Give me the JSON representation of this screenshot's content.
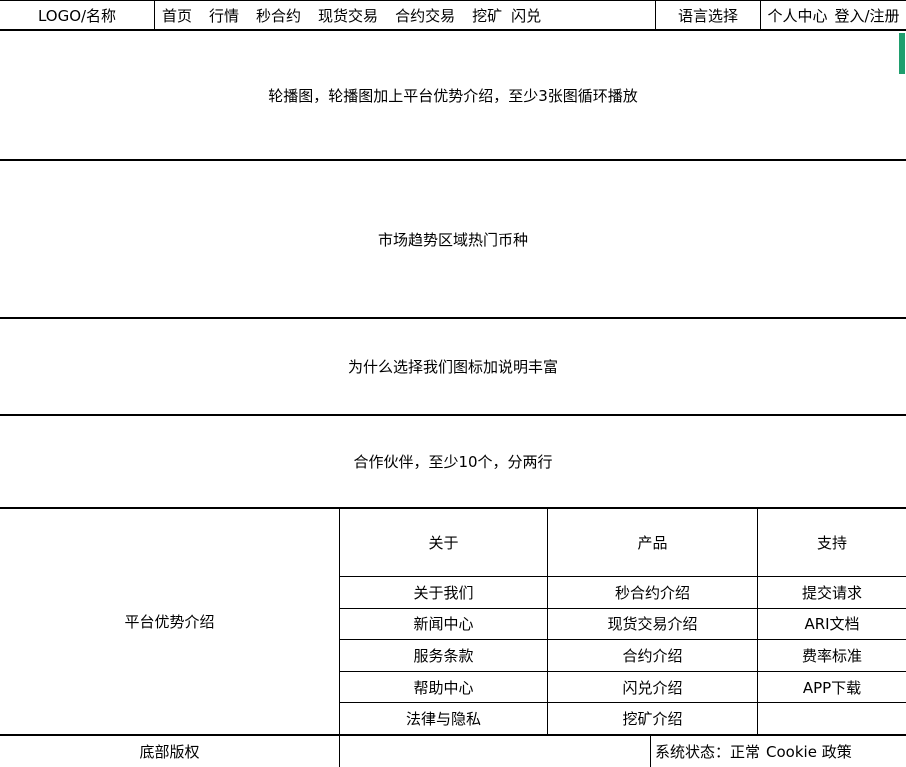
{
  "header": {
    "logo": "LOGO/名称",
    "nav_items": [
      "首页",
      "行情",
      "秒合约",
      "现货交易",
      "合约交易",
      "挖矿",
      "闪兑"
    ],
    "language": "语言选择",
    "user_center": "个人中心",
    "auth": "登入/注册"
  },
  "sections": {
    "carousel": "轮播图，轮播图加上平台优势介绍，至少3张图循环播放",
    "market": "市场趋势区域热门币种",
    "why_us": "为什么选择我们图标加说明丰富",
    "partners": "合作伙伴，至少10个，分两行"
  },
  "footer": {
    "platform": "平台优势介绍",
    "columns": [
      {
        "title": "关于",
        "items": [
          "关于我们",
          "新闻中心",
          "服务条款",
          "帮助中心",
          "法律与隐私"
        ]
      },
      {
        "title": "产品",
        "items": [
          "秒合约介绍",
          "现货交易介绍",
          "合约介绍",
          "闪兑介绍",
          "挖矿介绍"
        ]
      },
      {
        "title": "支持",
        "items": [
          "提交请求",
          "ARI文档",
          "费率标准",
          "APP下载",
          ""
        ]
      }
    ]
  },
  "bottom": {
    "copyright": "底部版权",
    "status": "系统状态：正常",
    "cookie": "Cookie 政策"
  },
  "colors": {
    "scrollbar_thumb": "#1f9e6e",
    "border": "#000000",
    "background": "#ffffff"
  }
}
